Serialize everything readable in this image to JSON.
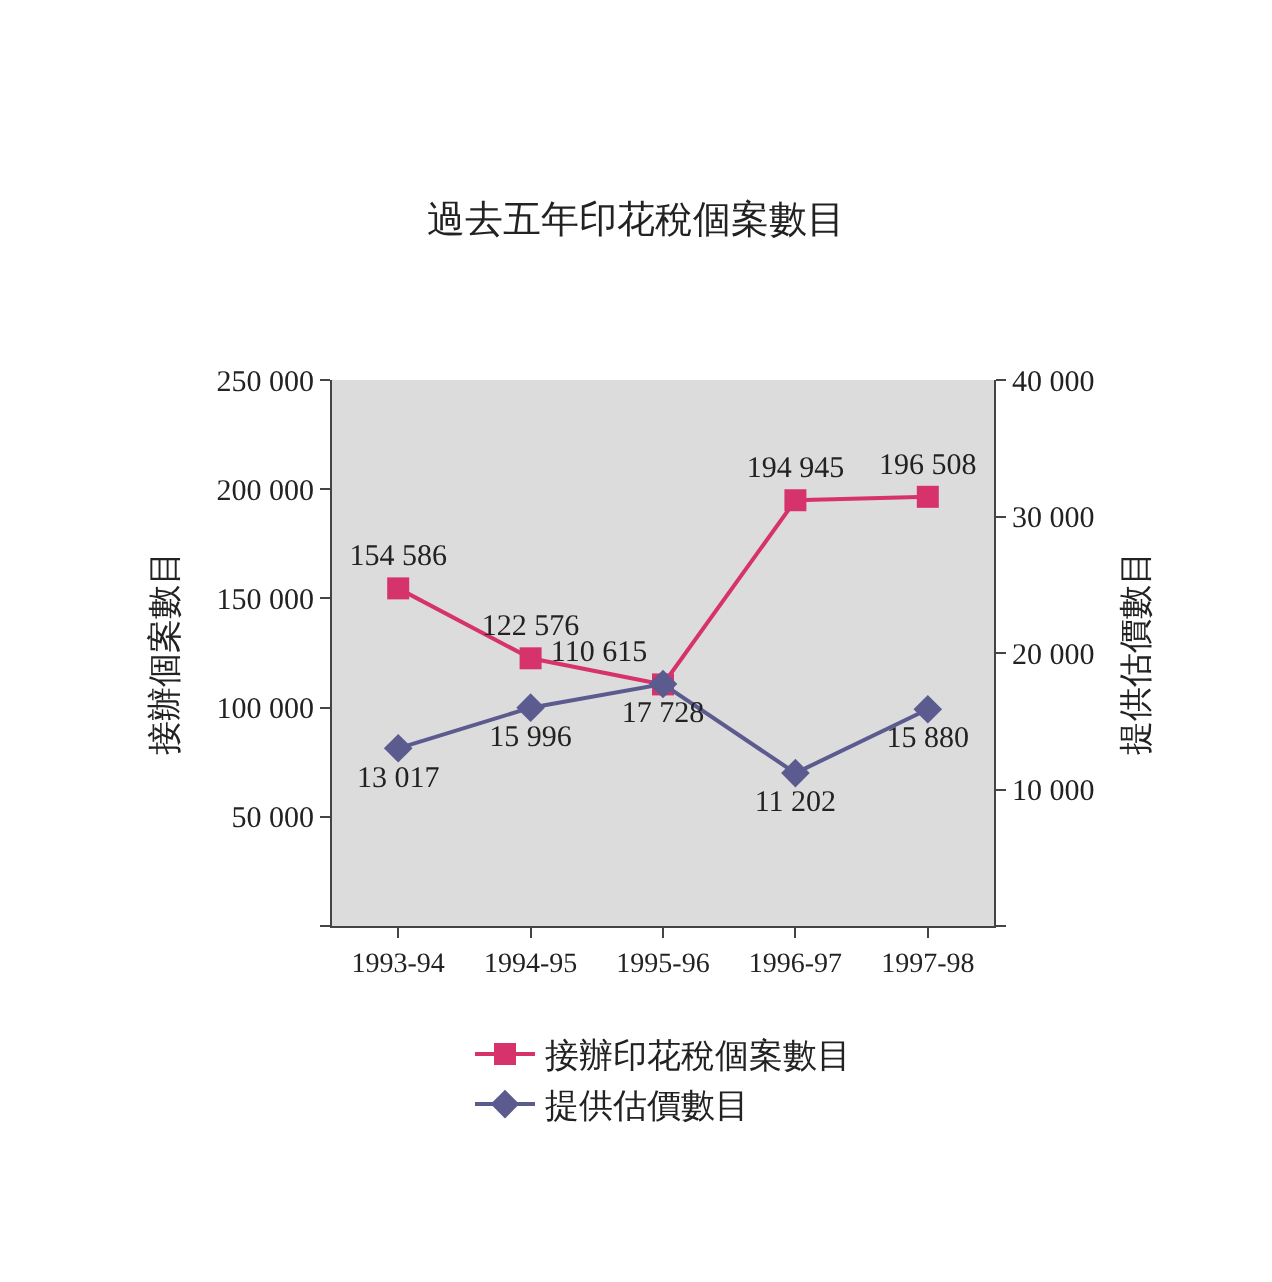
{
  "chart_data": {
    "type": "line",
    "title": "過去五年印花稅個案數目",
    "ylabel": "接辦個案數目",
    "y2label": "提供估價數目",
    "categories": [
      "1993-94",
      "1994-95",
      "1995-96",
      "1996-97",
      "1997-98"
    ],
    "series": [
      {
        "name": "接辦印花稅個案數目",
        "color": "#d6336c",
        "marker": "square",
        "values": [
          154586,
          122576,
          110615,
          194945,
          196508
        ],
        "value_labels": [
          "154 586",
          "122 576",
          "110 615",
          "194 945",
          "196 508"
        ]
      },
      {
        "name": "提供估價數目",
        "color": "#5b5b8f",
        "marker": "diamond",
        "axis": "y2",
        "values": [
          13017,
          15996,
          17728,
          11202,
          15880
        ],
        "value_labels": [
          "13 017",
          "15 996",
          "17 728",
          "11 202",
          "15 880"
        ]
      }
    ],
    "ylim": [
      0,
      250000
    ],
    "yticks": [
      {
        "value": 0,
        "label": null
      },
      {
        "value": 50000,
        "label": "50 000"
      },
      {
        "value": 100000,
        "label": "100 000"
      },
      {
        "value": 150000,
        "label": "150 000"
      },
      {
        "value": 200000,
        "label": "200 000"
      },
      {
        "value": 250000,
        "label": "250 000"
      }
    ],
    "y2lim": [
      0,
      40000
    ],
    "y2ticks": [
      {
        "value": 0,
        "label": null
      },
      {
        "value": 10000,
        "label": "10 000"
      },
      {
        "value": 20000,
        "label": "20 000"
      },
      {
        "value": 30000,
        "label": "30 000"
      },
      {
        "value": 40000,
        "label": "40 000"
      }
    ],
    "grid": false,
    "legend": "bottom",
    "line_style": "solid"
  }
}
